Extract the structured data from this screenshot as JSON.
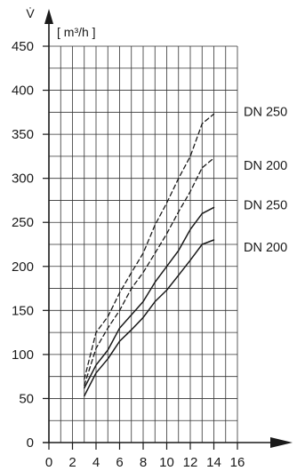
{
  "chart_data": {
    "type": "line",
    "ylabel": "V̇",
    "yunit": "[ m³/h ]",
    "xlim": [
      0,
      16
    ],
    "ylim": [
      0,
      450
    ],
    "x_ticks": [
      0,
      2,
      4,
      6,
      8,
      10,
      12,
      14,
      16
    ],
    "y_ticks": [
      0,
      50,
      100,
      150,
      200,
      250,
      300,
      350,
      400,
      450
    ],
    "grid": true,
    "series": [
      {
        "name": "DN 250",
        "style": "dashed",
        "x": [
          3,
          4,
          5,
          6,
          7,
          8,
          9,
          10,
          11,
          12,
          13,
          14
        ],
        "y": [
          72,
          125,
          143,
          170,
          193,
          215,
          247,
          272,
          300,
          325,
          362,
          373
        ]
      },
      {
        "name": "DN 200",
        "style": "dashed",
        "x": [
          3,
          4,
          5,
          6,
          7,
          8,
          9,
          10,
          11,
          12,
          13,
          14
        ],
        "y": [
          65,
          107,
          130,
          150,
          175,
          193,
          215,
          237,
          262,
          285,
          312,
          323
        ]
      },
      {
        "name": "DN 250",
        "style": "solid",
        "x": [
          3,
          4,
          5,
          6,
          7,
          8,
          9,
          10,
          11,
          12,
          13,
          14
        ],
        "y": [
          62,
          88,
          105,
          130,
          145,
          160,
          182,
          200,
          218,
          242,
          260,
          267
        ]
      },
      {
        "name": "DN 200",
        "style": "solid",
        "x": [
          3,
          4,
          5,
          6,
          7,
          8,
          9,
          10,
          11,
          12,
          13,
          14
        ],
        "y": [
          53,
          79,
          95,
          115,
          128,
          142,
          160,
          173,
          190,
          207,
          225,
          230
        ]
      }
    ]
  }
}
